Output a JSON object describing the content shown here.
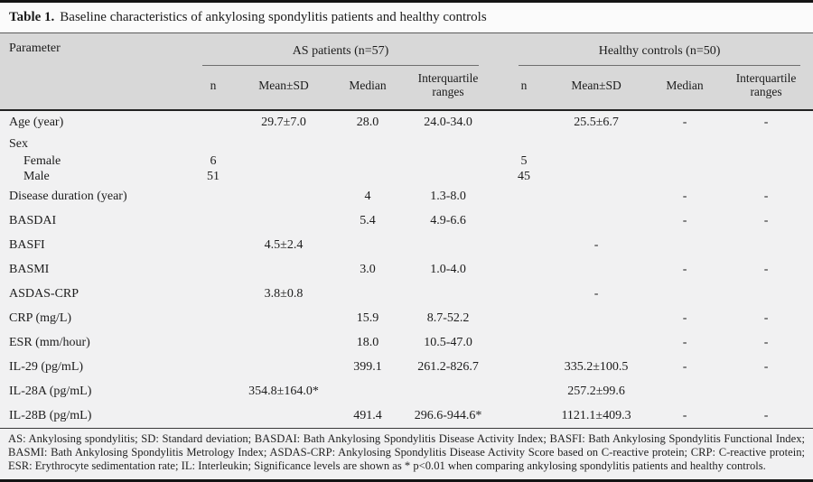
{
  "title": {
    "number": "Table 1.",
    "caption": "Baseline characteristics of ankylosing spondylitis patients and healthy controls"
  },
  "header": {
    "parameter": "Parameter",
    "groups": [
      {
        "label": "AS patients (n=57)"
      },
      {
        "label": "Healthy controls (n=50)"
      }
    ],
    "subcolumns": [
      "n",
      "Mean±SD",
      "Median",
      "Interquartile ranges"
    ]
  },
  "rows": [
    {
      "label": "Age (year)",
      "cells": [
        "",
        "29.7±7.0",
        "28.0",
        "24.0-34.0",
        "",
        "25.5±6.7",
        "-",
        "-"
      ]
    },
    {
      "label": "Sex",
      "cells": [
        "",
        "",
        "",
        "",
        "",
        "",
        "",
        ""
      ]
    },
    {
      "label": "Female",
      "cells": [
        "6",
        "",
        "",
        "",
        "5",
        "",
        "",
        ""
      ]
    },
    {
      "label": "Male",
      "cells": [
        "51",
        "",
        "",
        "",
        "45",
        "",
        "",
        ""
      ]
    },
    {
      "label": "Disease duration (year)",
      "cells": [
        "",
        "",
        "4",
        "1.3-8.0",
        "",
        "",
        "-",
        "-"
      ]
    },
    {
      "label": "BASDAI",
      "cells": [
        "",
        "",
        "5.4",
        "4.9-6.6",
        "",
        "",
        "-",
        "-"
      ]
    },
    {
      "label": "BASFI",
      "cells": [
        "",
        "4.5±2.4",
        "",
        "",
        "",
        "-",
        "",
        ""
      ]
    },
    {
      "label": "BASMI",
      "cells": [
        "",
        "",
        "3.0",
        "1.0-4.0",
        "",
        "",
        "-",
        "-"
      ]
    },
    {
      "label": "ASDAS-CRP",
      "cells": [
        "",
        "3.8±0.8",
        "",
        "",
        "",
        "-",
        "",
        ""
      ]
    },
    {
      "label": "CRP (mg/L)",
      "cells": [
        "",
        "",
        "15.9",
        "8.7-52.2",
        "",
        "",
        "-",
        "-"
      ]
    },
    {
      "label": "ESR (mm/hour)",
      "cells": [
        "",
        "",
        "18.0",
        "10.5-47.0",
        "",
        "",
        "-",
        "-"
      ]
    },
    {
      "label": "IL-29 (pg/mL)",
      "cells": [
        "",
        "",
        "399.1",
        "261.2-826.7",
        "",
        "335.2±100.5",
        "-",
        "-"
      ]
    },
    {
      "label": "IL-28A (pg/mL)",
      "cells": [
        "",
        "354.8±164.0*",
        "",
        "",
        "",
        "257.2±99.6",
        "",
        ""
      ]
    },
    {
      "label": "IL-28B (pg/mL)",
      "cells": [
        "",
        "",
        "491.4",
        "296.6-944.6*",
        "",
        "1121.1±409.3",
        "-",
        "-"
      ]
    }
  ],
  "footnote": "AS: Ankylosing spondylitis; SD: Standard deviation; BASDAI: Bath Ankylosing Spondylitis Disease Activity Index; BASFI: Bath Ankylosing Spondylitis Functional Index; BASMI: Bath Ankylosing Spondylitis Metrology Index; ASDAS-CRP: Ankylosing Spondylitis Disease Activity Score based on C-reactive protein; CRP: C-reactive protein; ESR: Erythrocyte sedimentation rate; IL: Interleukin; Significance levels are shown as * p<0.01 when comparing ankylosing spondylitis patients and healthy controls.",
  "colors": {
    "header_bg": "#d8d8d8",
    "body_bg": "#f1f1f2",
    "title_bg": "#fbfbfb",
    "border": "#141414"
  }
}
